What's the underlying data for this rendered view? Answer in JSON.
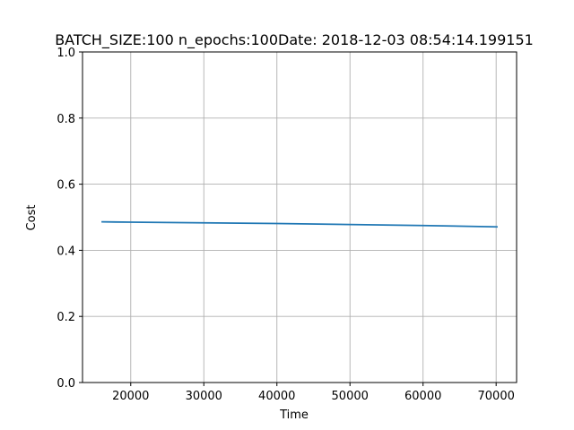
{
  "chart_data": {
    "type": "line",
    "title": "BATCH_SIZE:100 n_epochs:100Date: 2018-12-03 08:54:14.199151",
    "xlabel": "Time",
    "ylabel": "Cost",
    "xlim": [
      13400,
      72800
    ],
    "ylim": [
      0.0,
      1.0
    ],
    "xticks": [
      20000,
      30000,
      40000,
      50000,
      60000,
      70000
    ],
    "xtick_labels": [
      "20000",
      "30000",
      "40000",
      "50000",
      "60000",
      "70000"
    ],
    "yticks": [
      0.0,
      0.2,
      0.4,
      0.6,
      0.8,
      1.0
    ],
    "ytick_labels": [
      "0.0",
      "0.2",
      "0.4",
      "0.6",
      "0.8",
      "1.0"
    ],
    "grid": true,
    "series": [
      {
        "color": "#1f77b4",
        "x": [
          16100,
          20000,
          30000,
          40000,
          50000,
          60000,
          70100
        ],
        "y": [
          0.486,
          0.485,
          0.483,
          0.481,
          0.478,
          0.475,
          0.471
        ]
      }
    ]
  }
}
